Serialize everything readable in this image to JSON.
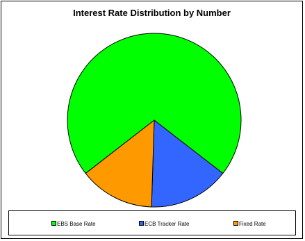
{
  "chart_data": {
    "type": "pie",
    "title": "Interest Rate Distribution by Number",
    "categories": [
      "EBS Base Rate",
      "ECB Tracker Rate",
      "Fixed Rate"
    ],
    "values": [
      71,
      15,
      14
    ],
    "unit": "",
    "colors": [
      "#00ff00",
      "#3366ff",
      "#ff9900"
    ],
    "legend_position": "bottom"
  }
}
